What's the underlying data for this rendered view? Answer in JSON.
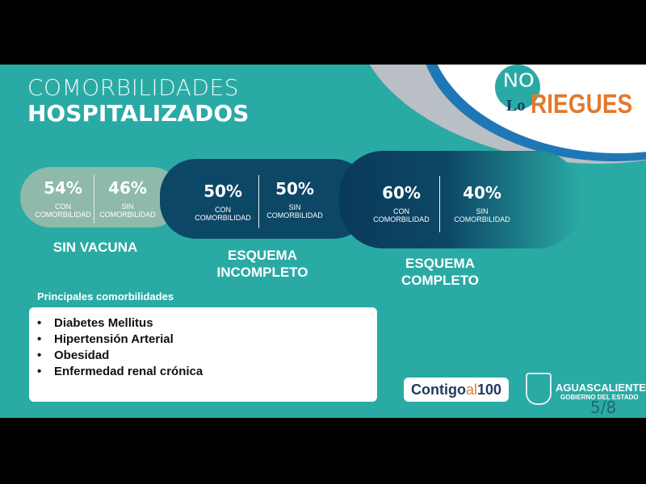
{
  "title": {
    "line1": "COMORBILIDADES",
    "line2": "HOSPITALIZADOS"
  },
  "logo": {
    "no": "NO",
    "lo": "Lo",
    "riegues": "RIEGUES"
  },
  "groups": [
    {
      "label": "SIN VACUNA",
      "con_pct": "54%",
      "sin_pct": "46%"
    },
    {
      "label": "ESQUEMA INCOMPLETO",
      "con_pct": "50%",
      "sin_pct": "50%"
    },
    {
      "label": "ESQUEMA COMPLETO",
      "con_pct": "60%",
      "sin_pct": "40%"
    }
  ],
  "con_label": "CON COMORBILIDAD",
  "sin_label": "SIN COMORBILIDAD",
  "con_word": "CON",
  "sin_word": "SIN",
  "comorb_word": "COMORBILIDAD",
  "group_label_lines": [
    [
      "SIN VACUNA"
    ],
    [
      "ESQUEMA",
      "INCOMPLETO"
    ],
    [
      "ESQUEMA",
      "COMPLETO"
    ]
  ],
  "principales": {
    "title": "Principales comorbilidades",
    "items": [
      "Diabetes Mellitus",
      "Hipertensión Arterial",
      "Obesidad",
      "Enfermedad renal crónica"
    ]
  },
  "footer": {
    "contigo": "Contigo",
    "al": "al",
    "cien": "100",
    "state": "AGUASCALIENTES",
    "gov": "GOBIERNO DEL ESTADO",
    "page": "5/8"
  },
  "colors": {
    "background": "#2aaaa5",
    "pill_sin_vacuna": "#8fb9a8",
    "pill_dark": "#0d4766",
    "accent_orange": "#e07b2e"
  }
}
